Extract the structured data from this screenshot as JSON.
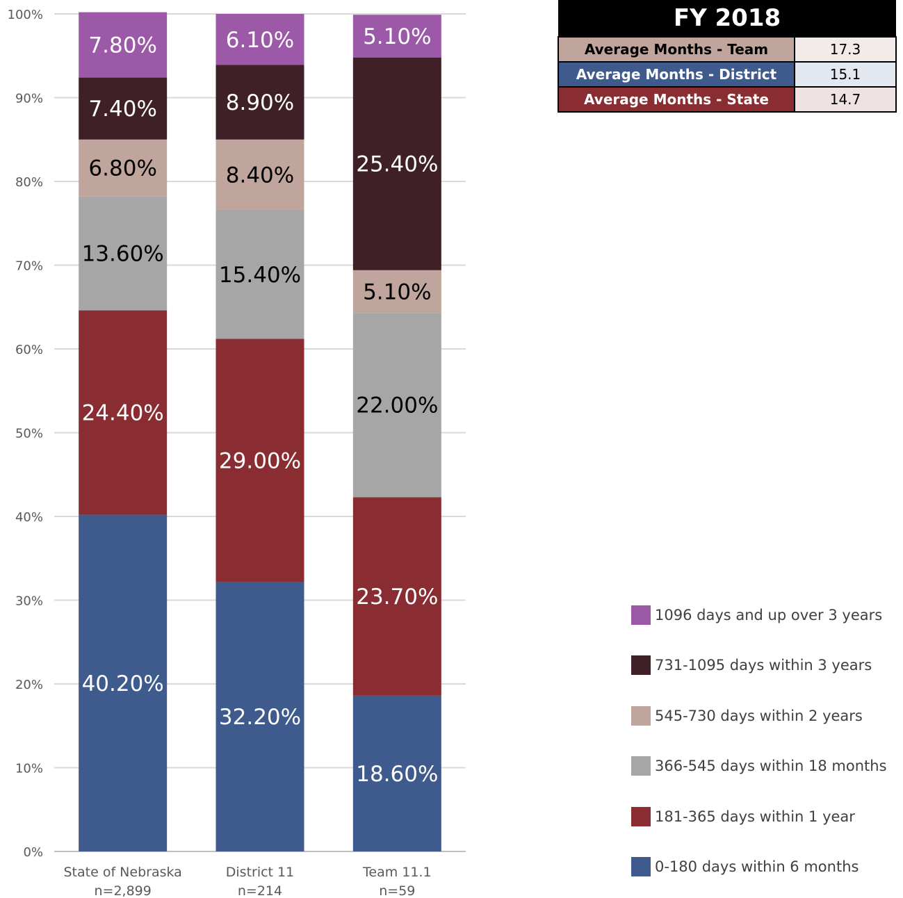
{
  "chart_data": {
    "type": "bar",
    "stacked": true,
    "categories": [
      "State of Nebraska",
      "District 11",
      "Team 11.1"
    ],
    "category_sublabels": [
      "n=2,899",
      "n=214",
      "n=59"
    ],
    "ylim": [
      0,
      100
    ],
    "yticks": [
      "0%",
      "10%",
      "20%",
      "30%",
      "40%",
      "50%",
      "60%",
      "70%",
      "80%",
      "90%",
      "100%"
    ],
    "grid": true,
    "legend_position": "right",
    "series": [
      {
        "name": "0-180 days within 6 months",
        "color": "#3f5a8c",
        "label_color": "#ffffff",
        "values": [
          40.2,
          32.2,
          18.6
        ],
        "labels": [
          "40.20%",
          "32.20%",
          "18.60%"
        ]
      },
      {
        "name": "181-365 days within 1 year",
        "color": "#8a2d33",
        "label_color": "#ffffff",
        "values": [
          24.4,
          29.0,
          23.7
        ],
        "labels": [
          "24.40%",
          "29.00%",
          "23.70%"
        ]
      },
      {
        "name": "366-545 days within 18 months",
        "color": "#a6a6a6",
        "label_color": "#000000",
        "values": [
          13.6,
          15.4,
          22.0
        ],
        "labels": [
          "13.60%",
          "15.40%",
          "22.00%"
        ]
      },
      {
        "name": "545-730 days within 2 years",
        "color": "#c0a59c",
        "label_color": "#000000",
        "values": [
          6.8,
          8.4,
          5.1
        ],
        "labels": [
          "6.80%",
          "8.40%",
          "5.10%"
        ]
      },
      {
        "name": "731-1095 days within 3 years",
        "color": "#3f2027",
        "label_color": "#ffffff",
        "values": [
          7.4,
          8.9,
          25.4
        ],
        "labels": [
          "7.40%",
          "8.90%",
          "25.40%"
        ]
      },
      {
        "name": "1096 days and up over 3 years",
        "color": "#9b59a8",
        "label_color": "#ffffff",
        "values": [
          7.8,
          6.1,
          5.1
        ],
        "labels": [
          "7.80%",
          "6.10%",
          "5.10%"
        ]
      }
    ]
  },
  "fy_table": {
    "title": "FY 2018",
    "rows": [
      {
        "label": "Average Months - Team",
        "value": "17.3",
        "label_bg": "#c0a59c",
        "label_color": "#000000",
        "value_bg": "#f2ebe9"
      },
      {
        "label": "Average Months - District",
        "value": "15.1",
        "label_bg": "#3f5a8c",
        "label_color": "#ffffff",
        "value_bg": "#e3e7ef"
      },
      {
        "label": "Average Months - State",
        "value": "14.7",
        "label_bg": "#8a2d33",
        "label_color": "#ffffff",
        "value_bg": "#efe2e3"
      }
    ]
  }
}
